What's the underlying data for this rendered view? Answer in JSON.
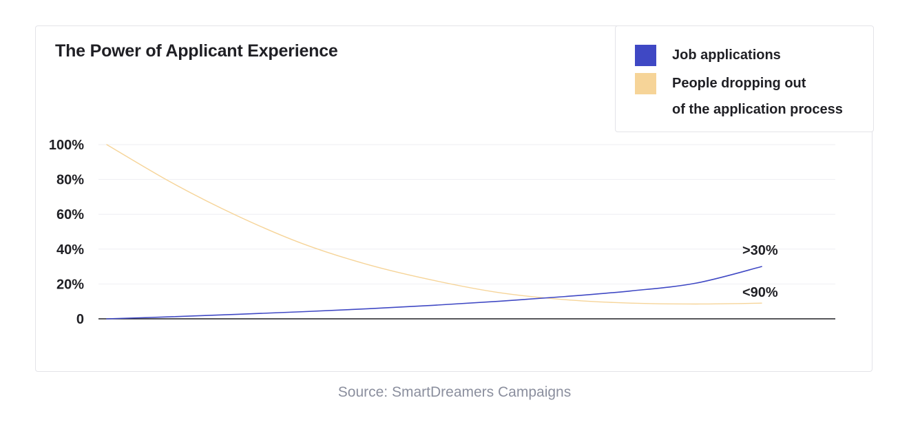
{
  "chart_data": {
    "type": "line",
    "title": "The Power of Applicant Experience",
    "xlabel": "",
    "ylabel": "",
    "ylim": [
      0,
      100
    ],
    "ytick_labels": [
      "0",
      "20%",
      "40%",
      "60%",
      "80%",
      "100%"
    ],
    "yticks": [
      0,
      20,
      40,
      60,
      80,
      100
    ],
    "x": [
      0,
      0.1,
      0.2,
      0.3,
      0.4,
      0.5,
      0.6,
      0.7,
      0.8,
      0.9,
      1.0
    ],
    "series": [
      {
        "name": "Job applications",
        "color": "#3f48c4",
        "values": [
          0,
          1.2,
          2.6,
          4.1,
          5.8,
          7.8,
          10.1,
          12.8,
          16.0,
          20.5,
          30
        ],
        "end_label": ">30%"
      },
      {
        "name": "People dropping out of the application process",
        "color": "#f6d498",
        "values": [
          100,
          78,
          59,
          43,
          31,
          22,
          15,
          11,
          9,
          8.5,
          9
        ],
        "end_label": "<90%"
      }
    ],
    "legend_position": "top-right",
    "grid": true
  },
  "legend": {
    "items": [
      {
        "lines": [
          "Job applications"
        ]
      },
      {
        "lines": [
          "People dropping out",
          "of the application process"
        ]
      }
    ]
  },
  "source": "Source: SmartDreamers Campaigns"
}
